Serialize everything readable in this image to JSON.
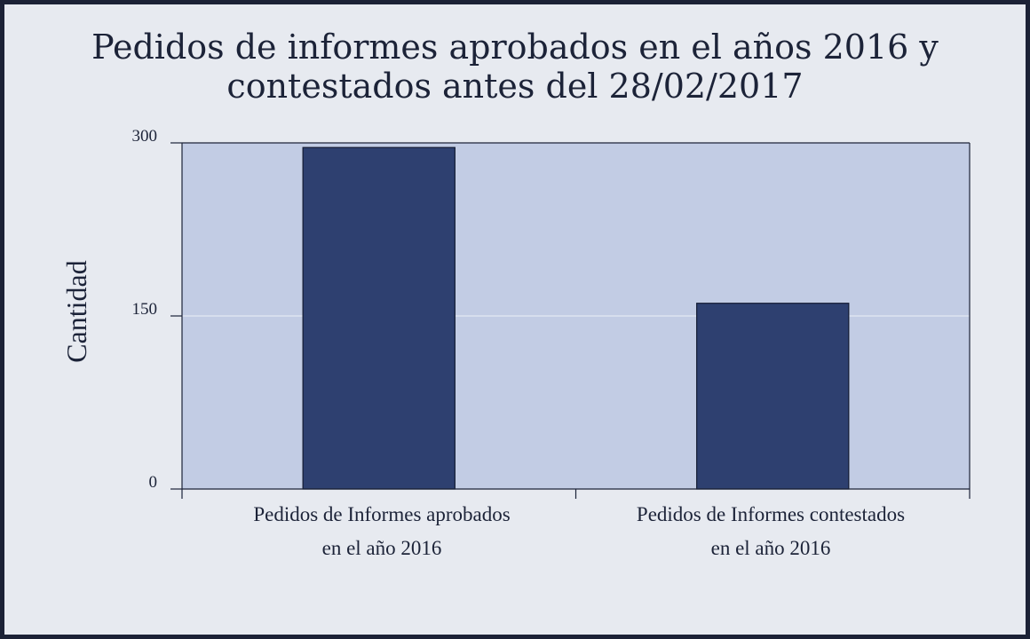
{
  "chart_data": {
    "type": "bar",
    "title_lines": [
      "Pedidos de informes aprobados en el años 2016 y",
      "contestados antes del 28/02/2017"
    ],
    "categories": [
      {
        "line1": "Pedidos de Informes aprobados",
        "line2": "en el año 2016"
      },
      {
        "line1": "Pedidos de Informes contestados",
        "line2": "en el año 2016"
      }
    ],
    "values": [
      296,
      161
    ],
    "xlabel": "",
    "ylabel": "Cantidad",
    "ylim": [
      0,
      300
    ],
    "yticks": [
      0,
      150,
      300
    ],
    "ytick_labels": [
      "0",
      "150",
      "300"
    ],
    "grid": true,
    "colors": {
      "bar": "#2e4070",
      "bar_edge": "#141c33",
      "plot_bg": "#c2cce4",
      "axis": "#1c2338",
      "gridline": "#e4e8f2"
    }
  }
}
